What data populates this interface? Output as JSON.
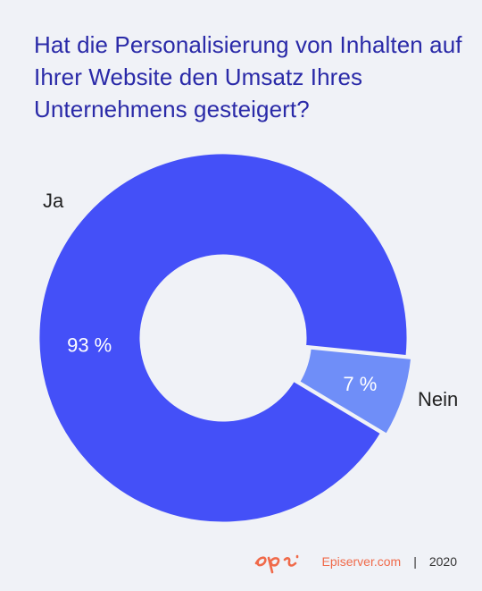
{
  "title": "Hat die Personalisierung von Inhalten auf Ihrer Website den Umsatz Ihres Unternehmens gesteigert?",
  "chart_data": {
    "type": "pie",
    "donut": true,
    "categories": [
      "Ja",
      "Nein"
    ],
    "values": [
      93,
      7
    ],
    "data_labels": [
      "93 %",
      "7 %"
    ],
    "colors": [
      "#4450f8",
      "#6f8ef8"
    ],
    "legend": "labels beside slices"
  },
  "footer": {
    "brand": "Episerver.com",
    "separator": "|",
    "year": "2020",
    "logo_text": "epi",
    "accent_color": "#f06a4a"
  }
}
